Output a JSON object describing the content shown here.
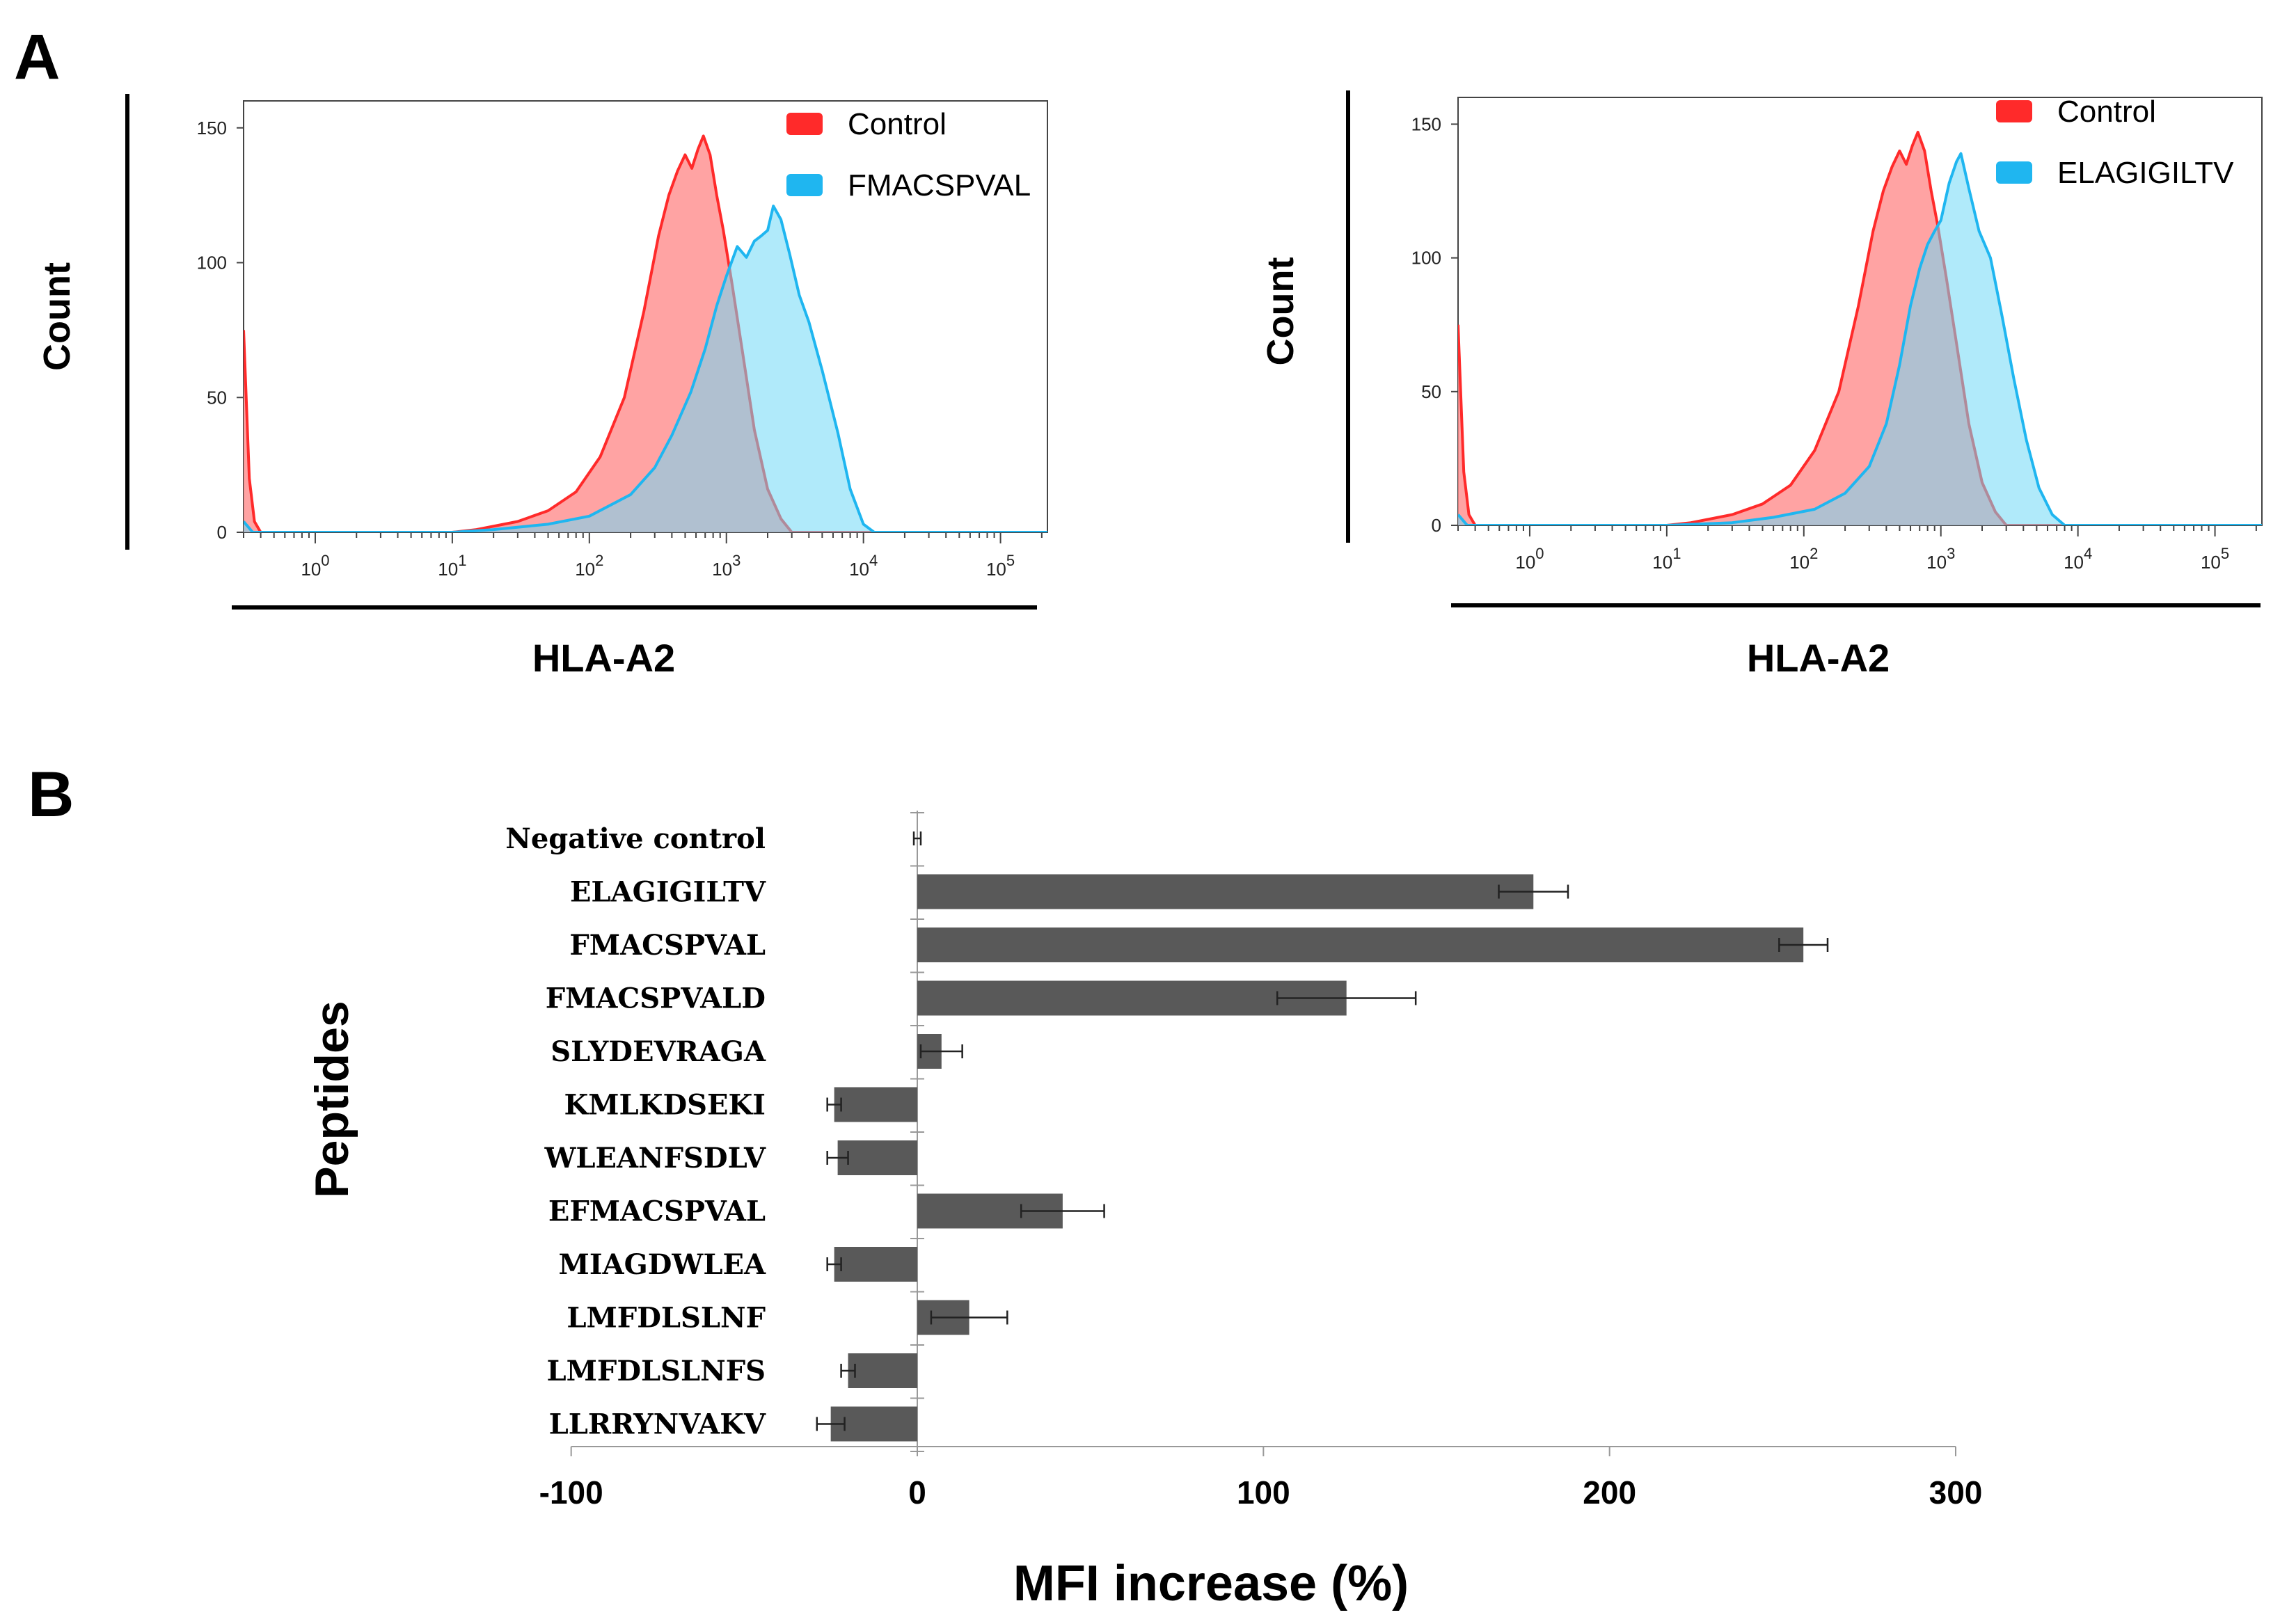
{
  "panels": {
    "a_label": "A",
    "b_label": "B"
  },
  "chart_data": [
    {
      "type": "area",
      "id": "hist-fmacspval",
      "title": "",
      "xlabel": "HLA-A2",
      "ylabel": "Count",
      "xscale": "log",
      "xlim": [
        0.3,
        220000
      ],
      "ylim": [
        0,
        160
      ],
      "x_ticks": [
        {
          "base": "10",
          "exp": "0"
        },
        {
          "base": "10",
          "exp": "1"
        },
        {
          "base": "10",
          "exp": "2"
        },
        {
          "base": "10",
          "exp": "3"
        },
        {
          "base": "10",
          "exp": "4"
        },
        {
          "base": "10",
          "exp": "5"
        }
      ],
      "y_ticks": [
        "0",
        "50",
        "100",
        "150"
      ],
      "y_tick_values": [
        0,
        50,
        100,
        150
      ],
      "legend_position": "top-right",
      "series": [
        {
          "name": "Control",
          "color": "#ff2a2a",
          "fill": "#ff8c8c",
          "points": [
            [
              0.3,
              75
            ],
            [
              0.33,
              20
            ],
            [
              0.36,
              4
            ],
            [
              0.4,
              0
            ],
            [
              10,
              0
            ],
            [
              15,
              1
            ],
            [
              30,
              4
            ],
            [
              50,
              8
            ],
            [
              80,
              15
            ],
            [
              120,
              28
            ],
            [
              180,
              50
            ],
            [
              250,
              82
            ],
            [
              320,
              110
            ],
            [
              380,
              125
            ],
            [
              440,
              134
            ],
            [
              500,
              140
            ],
            [
              560,
              135
            ],
            [
              620,
              142
            ],
            [
              680,
              147
            ],
            [
              760,
              140
            ],
            [
              850,
              125
            ],
            [
              950,
              112
            ],
            [
              1100,
              92
            ],
            [
              1300,
              68
            ],
            [
              1600,
              38
            ],
            [
              2000,
              16
            ],
            [
              2500,
              5
            ],
            [
              3000,
              0
            ],
            [
              220000,
              0
            ]
          ]
        },
        {
          "name": "FMACSPVAL",
          "color": "#1fb6f0",
          "fill": "#6fd8f6",
          "points": [
            [
              0.3,
              4
            ],
            [
              0.35,
              0
            ],
            [
              10,
              0
            ],
            [
              20,
              1
            ],
            [
              50,
              3
            ],
            [
              100,
              6
            ],
            [
              200,
              14
            ],
            [
              300,
              24
            ],
            [
              400,
              36
            ],
            [
              550,
              52
            ],
            [
              700,
              68
            ],
            [
              850,
              84
            ],
            [
              1000,
              95
            ],
            [
              1200,
              106
            ],
            [
              1400,
              102
            ],
            [
              1600,
              108
            ],
            [
              1800,
              110
            ],
            [
              2000,
              112
            ],
            [
              2200,
              121
            ],
            [
              2500,
              116
            ],
            [
              2900,
              103
            ],
            [
              3400,
              88
            ],
            [
              4000,
              78
            ],
            [
              5000,
              60
            ],
            [
              6500,
              37
            ],
            [
              8000,
              16
            ],
            [
              10000,
              3
            ],
            [
              12000,
              0
            ],
            [
              220000,
              0
            ]
          ]
        }
      ]
    },
    {
      "type": "area",
      "id": "hist-elagigiltv",
      "title": "",
      "xlabel": "HLA-A2",
      "ylabel": "Count",
      "xscale": "log",
      "xlim": [
        0.3,
        220000
      ],
      "ylim": [
        0,
        160
      ],
      "x_ticks": [
        {
          "base": "10",
          "exp": "0"
        },
        {
          "base": "10",
          "exp": "1"
        },
        {
          "base": "10",
          "exp": "2"
        },
        {
          "base": "10",
          "exp": "3"
        },
        {
          "base": "10",
          "exp": "4"
        },
        {
          "base": "10",
          "exp": "5"
        }
      ],
      "y_ticks": [
        "0",
        "50",
        "100",
        "150"
      ],
      "y_tick_values": [
        0,
        50,
        100,
        150
      ],
      "legend_position": "top-right",
      "series": [
        {
          "name": "Control",
          "color": "#ff2a2a",
          "fill": "#ff8c8c",
          "points": [
            [
              0.3,
              75
            ],
            [
              0.33,
              20
            ],
            [
              0.36,
              4
            ],
            [
              0.4,
              0
            ],
            [
              10,
              0
            ],
            [
              15,
              1
            ],
            [
              30,
              4
            ],
            [
              50,
              8
            ],
            [
              80,
              15
            ],
            [
              120,
              28
            ],
            [
              180,
              50
            ],
            [
              250,
              82
            ],
            [
              320,
              110
            ],
            [
              380,
              125
            ],
            [
              440,
              134
            ],
            [
              500,
              140
            ],
            [
              560,
              135
            ],
            [
              620,
              142
            ],
            [
              680,
              147
            ],
            [
              760,
              140
            ],
            [
              850,
              125
            ],
            [
              950,
              112
            ],
            [
              1100,
              92
            ],
            [
              1300,
              68
            ],
            [
              1600,
              38
            ],
            [
              2000,
              16
            ],
            [
              2500,
              5
            ],
            [
              3000,
              0
            ],
            [
              220000,
              0
            ]
          ]
        },
        {
          "name": "ELAGIGILTV",
          "color": "#1fb6f0",
          "fill": "#6fd8f6",
          "points": [
            [
              0.3,
              4
            ],
            [
              0.35,
              0
            ],
            [
              10,
              0
            ],
            [
              30,
              1
            ],
            [
              60,
              3
            ],
            [
              120,
              6
            ],
            [
              200,
              12
            ],
            [
              300,
              22
            ],
            [
              400,
              38
            ],
            [
              500,
              60
            ],
            [
              600,
              82
            ],
            [
              700,
              96
            ],
            [
              800,
              105
            ],
            [
              900,
              110
            ],
            [
              1000,
              114
            ],
            [
              1150,
              128
            ],
            [
              1300,
              136
            ],
            [
              1400,
              139
            ],
            [
              1600,
              126
            ],
            [
              1900,
              110
            ],
            [
              2300,
              100
            ],
            [
              2800,
              78
            ],
            [
              3400,
              55
            ],
            [
              4200,
              32
            ],
            [
              5200,
              14
            ],
            [
              6500,
              4
            ],
            [
              8000,
              0
            ],
            [
              220000,
              0
            ]
          ]
        }
      ]
    },
    {
      "type": "bar",
      "id": "mfi-bars",
      "orientation": "horizontal",
      "title": "",
      "xlabel": "MFI increase (%)",
      "ylabel": "Peptides",
      "xlim": [
        -100,
        300
      ],
      "x_ticks": [
        "-100",
        "0",
        "100",
        "200",
        "300"
      ],
      "x_tick_values": [
        -100,
        0,
        100,
        200,
        300
      ],
      "bar_color": "#595959",
      "categories": [
        "Negative control",
        "ELAGIGILTV",
        "FMACSPVAL",
        "FMACSPVALD",
        "SLYDEVRAGA",
        "KMLKDSEKI",
        "WLEANFSDLV",
        "EFMACSPVAL",
        "MIAGDWLEA",
        "LMFDLSLNF",
        "LMFDLSLNFS",
        "LLRRYNVAKV"
      ],
      "values": [
        0,
        178,
        256,
        124,
        7,
        -24,
        -23,
        42,
        -24,
        15,
        -20,
        -25
      ],
      "errors": [
        1,
        10,
        7,
        20,
        6,
        2,
        3,
        12,
        2,
        11,
        2,
        4
      ]
    }
  ]
}
